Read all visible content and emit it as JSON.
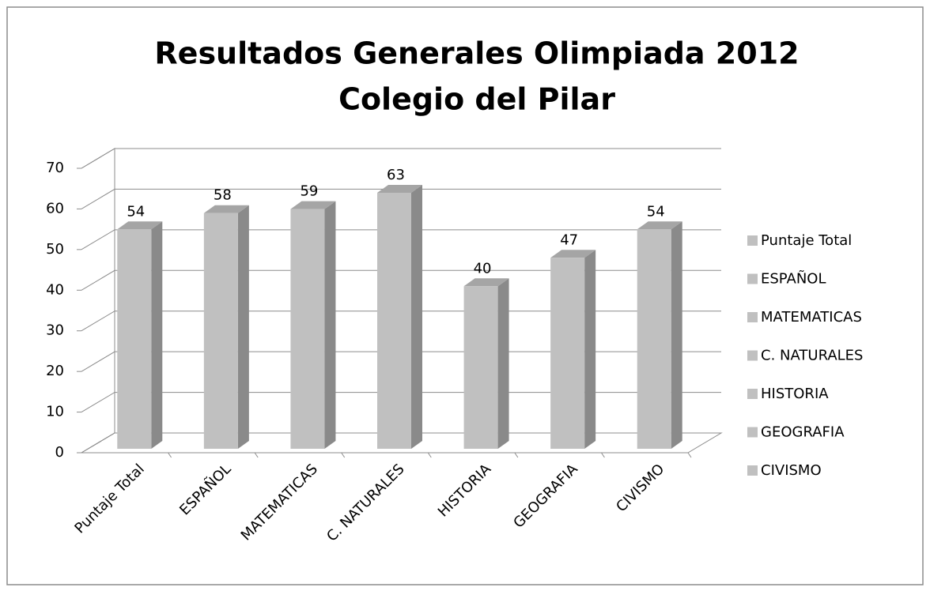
{
  "chart_data": {
    "type": "bar3d",
    "title": [
      "Resultados  Generales Olimpiada 2012",
      "Colegio del Pilar"
    ],
    "categories": [
      "Puntaje Total",
      "ESPAÑOL",
      "MATEMATICAS",
      "C. NATURALES",
      "HISTORIA",
      "GEOGRAFIA",
      "CIVISMO"
    ],
    "values": [
      54,
      58,
      59,
      63,
      40,
      47,
      54
    ],
    "color": "#c0c0c0",
    "ylim": [
      0,
      70
    ],
    "yticks": [
      0,
      10,
      20,
      30,
      40,
      50,
      60,
      70
    ],
    "grid": true,
    "legend": "right"
  }
}
